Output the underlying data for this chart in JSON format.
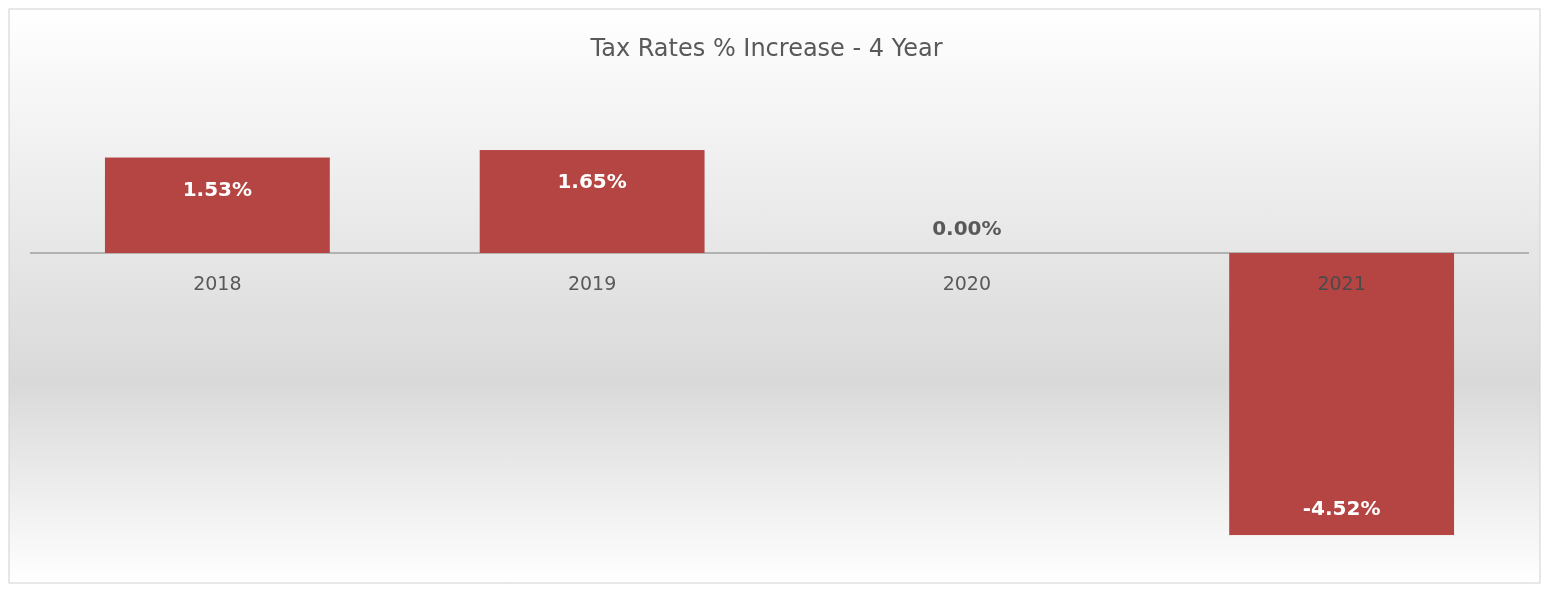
{
  "chart_data": {
    "type": "bar",
    "title": "Tax Rates % Increase - 4 Year",
    "categories": [
      "2018",
      "2019",
      "2020",
      "2021"
    ],
    "values": [
      1.53,
      1.65,
      0.0,
      -4.52
    ],
    "value_labels": [
      "1.53%",
      "1.65%",
      "0.00%",
      "-4.52%"
    ],
    "color": "#b54542"
  }
}
